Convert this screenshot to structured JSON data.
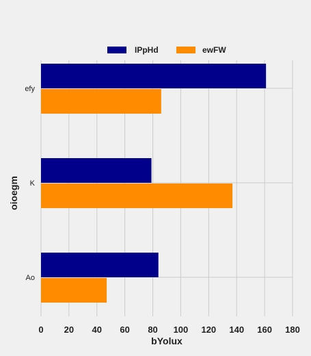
{
  "chart_data": {
    "type": "bar",
    "orientation": "horizontal",
    "categories": [
      "efy",
      "K",
      "Ao"
    ],
    "series": [
      {
        "name": "IPpHd",
        "values": [
          161,
          79,
          84
        ],
        "color": "#00008b"
      },
      {
        "name": "ewFW",
        "values": [
          86,
          137,
          47
        ],
        "color": "#ff8c00"
      }
    ],
    "xlabel": "bYolux",
    "ylabel": "oioegm",
    "xlim": [
      0,
      180
    ],
    "xticks": [
      0,
      20,
      40,
      60,
      80,
      100,
      120,
      140,
      160,
      180
    ],
    "grid": true,
    "legend_position": "top-center"
  }
}
